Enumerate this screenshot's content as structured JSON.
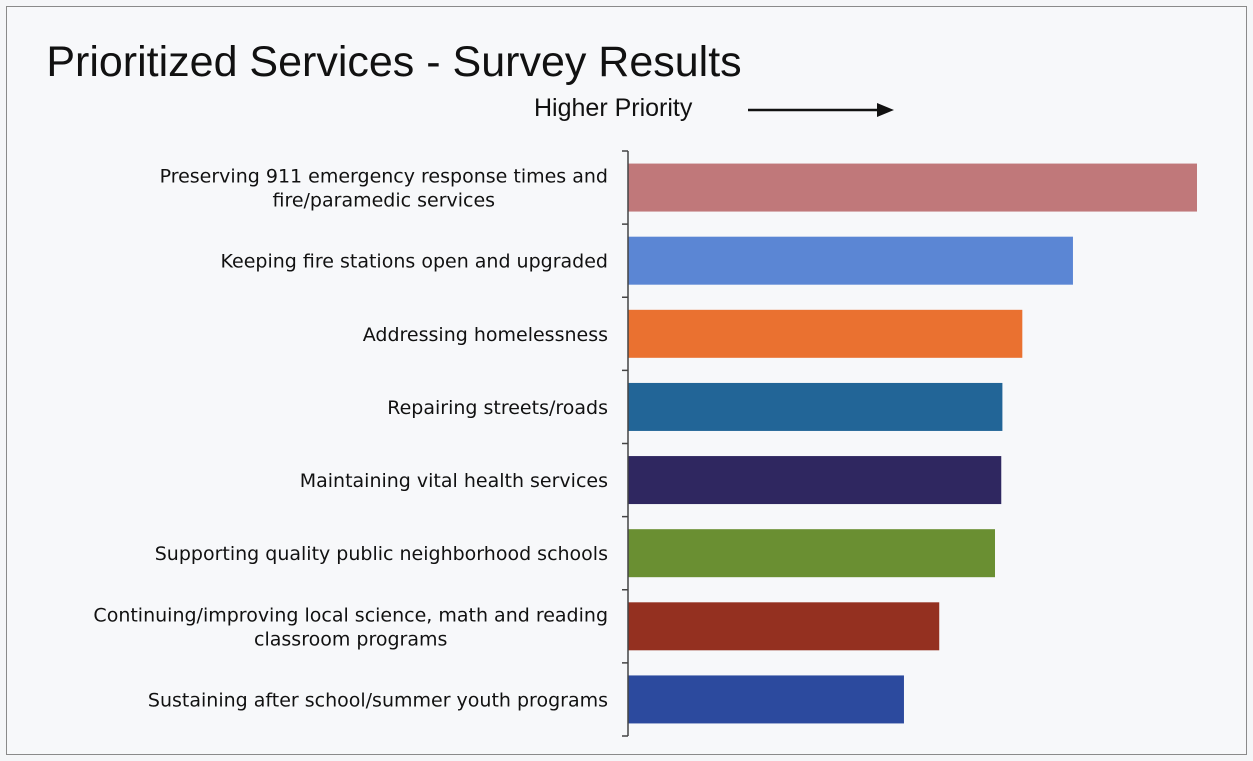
{
  "chart_data": {
    "type": "bar",
    "orientation": "horizontal",
    "title": "Prioritized Services - Survey Results",
    "subtitle": "Higher Priority",
    "xlabel": "",
    "ylabel": "",
    "xlim": [
      0,
      100
    ],
    "grid": false,
    "legend": "none",
    "categories": [
      [
        "Preserving 911 emergency response times and",
        "fire/paramedic services"
      ],
      [
        "Keeping fire stations open and upgraded"
      ],
      [
        "Addressing homelessness"
      ],
      [
        "Repairing streets/roads"
      ],
      [
        "Maintaining vital health services"
      ],
      [
        "Supporting quality public neighborhood schools"
      ],
      [
        "Continuing/improving local science, math and reading",
        "classroom programs"
      ],
      [
        "Sustaining after school/summer youth programs"
      ]
    ],
    "values": [
      100,
      78.2,
      69.3,
      65.8,
      65.6,
      64.5,
      54.7,
      48.5
    ],
    "colors": [
      "#c0787a",
      "#5b86d4",
      "#ea7130",
      "#226597",
      "#2f2760",
      "#6a8f32",
      "#943020",
      "#2c4a9e"
    ]
  }
}
